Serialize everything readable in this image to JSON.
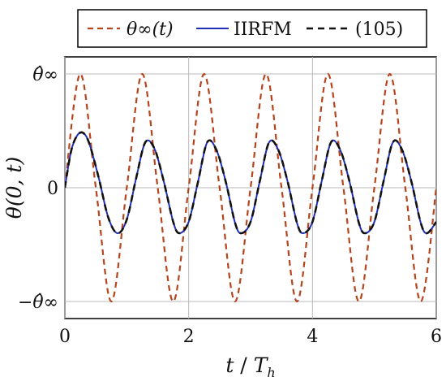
{
  "chart_data": {
    "type": "line",
    "xlabel": "t / T_h",
    "ylabel": "θ(0, t)",
    "xlim": [
      0,
      6
    ],
    "ylim": [
      -1.15,
      1.15
    ],
    "grid": true,
    "legend_position": "top",
    "x_ticks": [
      {
        "value": 0,
        "label": "0"
      },
      {
        "value": 2,
        "label": "2"
      },
      {
        "value": 4,
        "label": "4"
      },
      {
        "value": 6,
        "label": "6"
      }
    ],
    "y_ticks": [
      {
        "value": 1,
        "label": "θ̂∞"
      },
      {
        "value": 0,
        "label": "0"
      },
      {
        "value": -1,
        "label": "−θ̂∞"
      }
    ],
    "series": [
      {
        "name": "θ∞(t)",
        "color": "#b5441c",
        "dash": "dashed",
        "x": [
          0,
          0.25,
          0.5,
          0.75,
          1.0,
          1.25,
          1.5,
          1.75,
          2.0,
          2.25,
          2.5,
          2.75,
          3.0,
          3.25,
          3.5,
          3.75,
          4.0,
          4.25,
          4.5,
          4.75,
          5.0,
          5.25,
          5.5,
          5.75,
          6.0
        ],
        "values": [
          0,
          1,
          0,
          -1,
          0,
          1,
          0,
          -1,
          0,
          1,
          0,
          -1,
          0,
          1,
          0,
          -1,
          0,
          1,
          0,
          -1,
          0,
          1,
          0,
          -1,
          0
        ]
      },
      {
        "name": "IIRFM",
        "color": "#1f2fb8",
        "dash": "solid",
        "x": [
          0,
          0.1,
          0.2,
          0.3,
          0.4,
          0.55,
          0.7,
          0.85,
          1.0,
          1.15,
          1.3,
          1.45,
          1.6,
          1.75,
          1.85,
          2.0,
          2.15,
          2.3,
          2.45,
          2.6,
          2.75,
          2.85,
          3.0,
          3.15,
          3.3,
          3.45,
          3.6,
          3.75,
          3.85,
          4.0,
          4.15,
          4.3,
          4.45,
          4.6,
          4.75,
          4.85,
          5.0,
          5.15,
          5.3,
          5.45,
          5.6,
          5.75,
          5.85,
          6.0
        ],
        "values": [
          0,
          0.32,
          0.46,
          0.48,
          0.38,
          0.08,
          -0.26,
          -0.4,
          -0.28,
          0.08,
          0.4,
          0.34,
          0.05,
          -0.3,
          -0.4,
          -0.3,
          0.05,
          0.4,
          0.33,
          0.05,
          -0.31,
          -0.4,
          -0.3,
          0.06,
          0.4,
          0.33,
          0.05,
          -0.31,
          -0.4,
          -0.3,
          0.06,
          0.4,
          0.33,
          0.05,
          -0.31,
          -0.4,
          -0.3,
          0.06,
          0.4,
          0.33,
          0.05,
          -0.31,
          -0.4,
          -0.3
        ]
      },
      {
        "name": "(105)",
        "color": "#111111",
        "dash": "dashed",
        "x": [
          0,
          0.1,
          0.2,
          0.3,
          0.4,
          0.55,
          0.7,
          0.85,
          1.0,
          1.15,
          1.3,
          1.45,
          1.6,
          1.75,
          1.85,
          2.0,
          2.15,
          2.3,
          2.45,
          2.6,
          2.75,
          2.85,
          3.0,
          3.15,
          3.3,
          3.45,
          3.6,
          3.75,
          3.85,
          4.0,
          4.15,
          4.3,
          4.45,
          4.6,
          4.75,
          4.85,
          5.0,
          5.15,
          5.3,
          5.45,
          5.6,
          5.75,
          5.85,
          6.0
        ],
        "values": [
          0,
          0.32,
          0.46,
          0.48,
          0.38,
          0.08,
          -0.26,
          -0.4,
          -0.28,
          0.08,
          0.4,
          0.34,
          0.05,
          -0.3,
          -0.4,
          -0.3,
          0.05,
          0.4,
          0.33,
          0.05,
          -0.31,
          -0.4,
          -0.3,
          0.06,
          0.4,
          0.33,
          0.05,
          -0.31,
          -0.4,
          -0.3,
          0.06,
          0.4,
          0.33,
          0.05,
          -0.31,
          -0.4,
          -0.3,
          0.06,
          0.4,
          0.33,
          0.05,
          -0.31,
          -0.4,
          -0.3
        ]
      }
    ]
  }
}
